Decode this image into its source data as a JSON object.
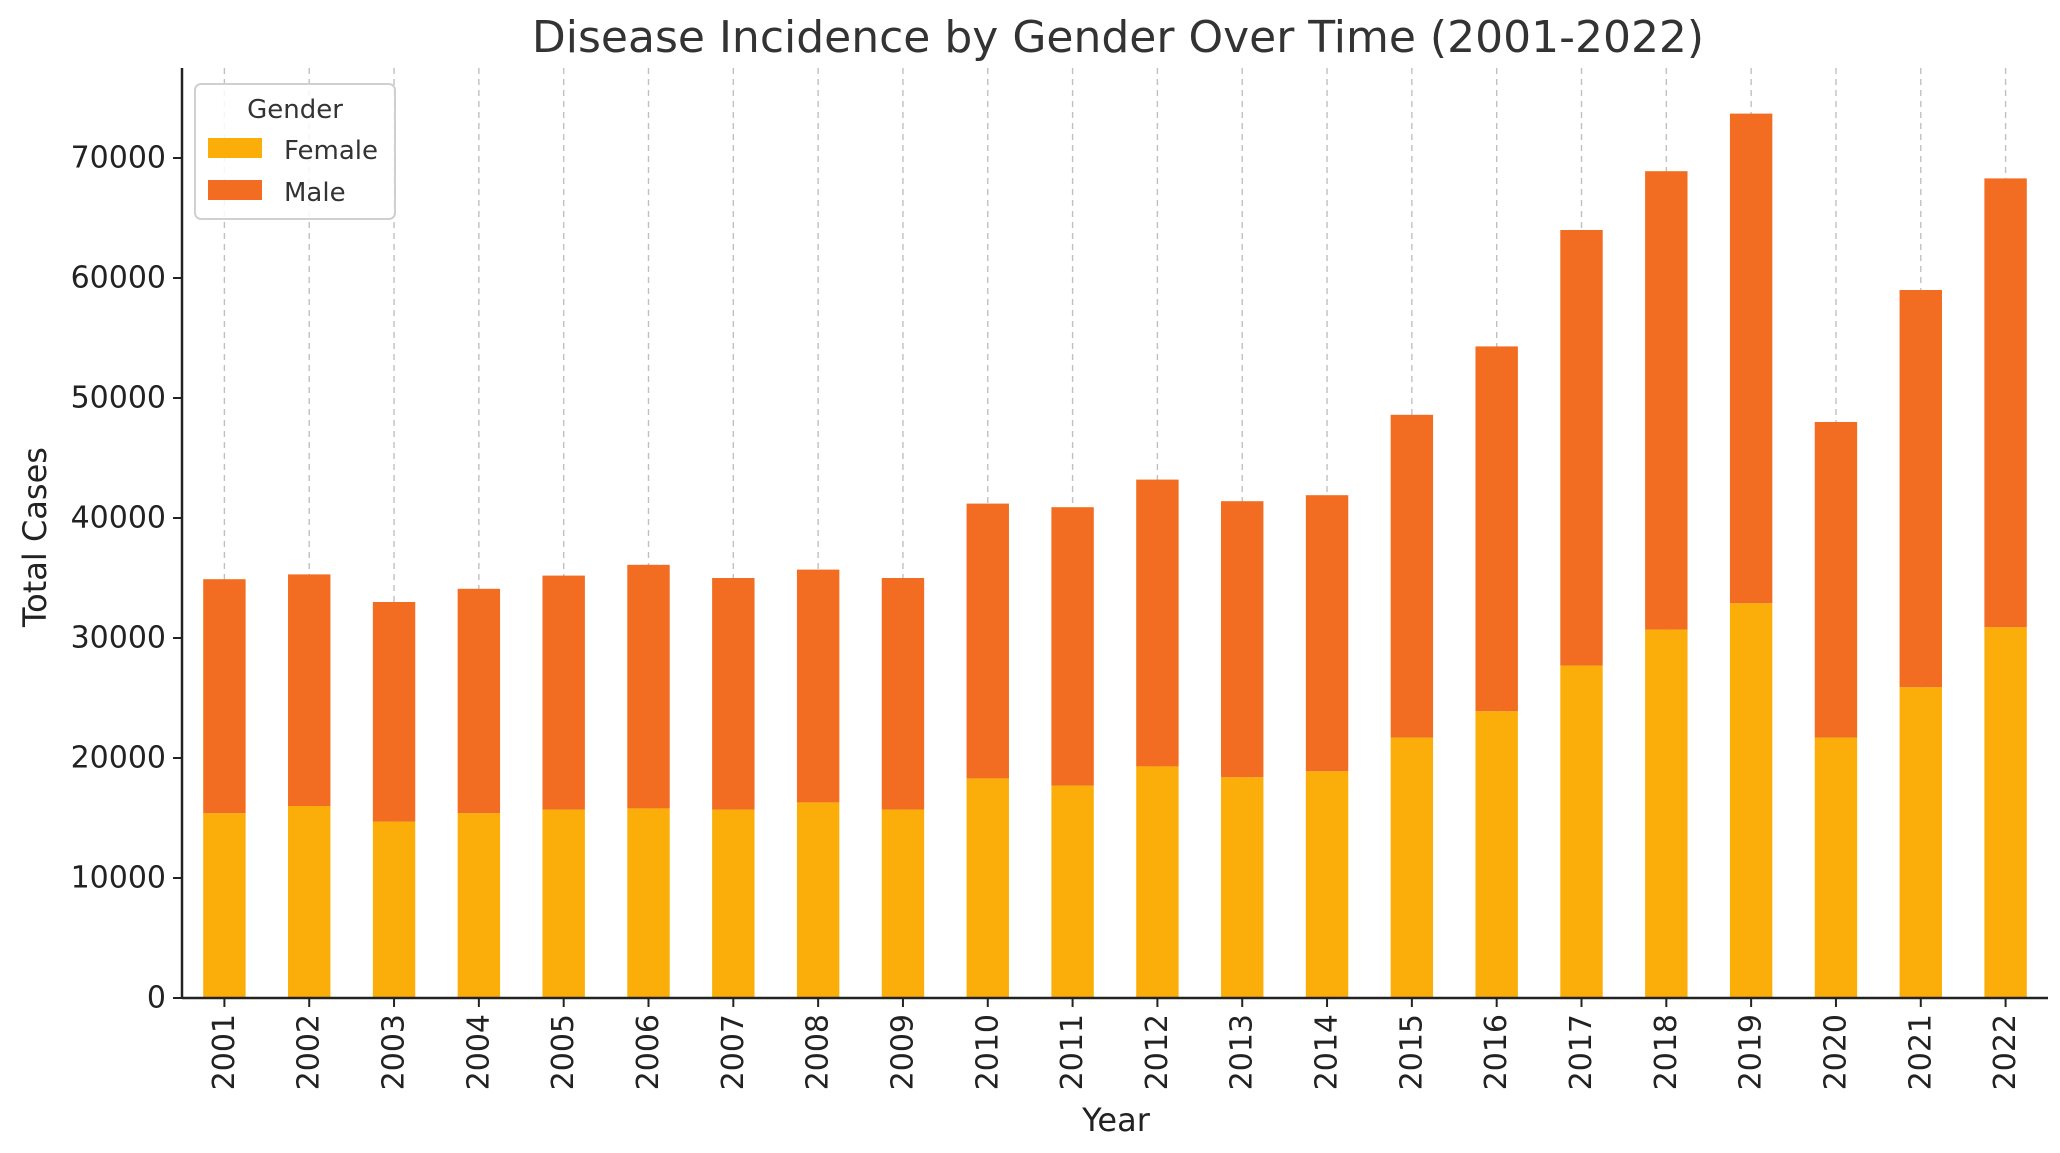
{
  "chart_data": {
    "type": "bar",
    "stacked": true,
    "title": "Disease Incidence by Gender Over Time (2001-2022)",
    "xlabel": "Year",
    "ylabel": "Total Cases",
    "ylim": [
      0,
      77500
    ],
    "yticks": [
      0,
      10000,
      20000,
      30000,
      40000,
      50000,
      60000,
      70000
    ],
    "grid": "vertical dashed",
    "legend": {
      "title": "Gender",
      "placement": "top-left"
    },
    "categories": [
      "2001",
      "2002",
      "2003",
      "2004",
      "2005",
      "2006",
      "2007",
      "2008",
      "2009",
      "2010",
      "2011",
      "2012",
      "2013",
      "2014",
      "2015",
      "2016",
      "2017",
      "2018",
      "2019",
      "2020",
      "2021",
      "2022"
    ],
    "series": [
      {
        "name": "Female",
        "color": "#FBAE09",
        "values": [
          15400,
          16000,
          14700,
          15400,
          15700,
          15800,
          15700,
          16300,
          15700,
          18300,
          17700,
          19300,
          18400,
          18900,
          21700,
          23900,
          27700,
          30700,
          32900,
          21700,
          25900,
          30900
        ]
      },
      {
        "name": "Male",
        "color": "#F26C22",
        "values": [
          19500,
          19300,
          18300,
          18700,
          19500,
          20300,
          19300,
          19400,
          19300,
          22900,
          23200,
          23900,
          23000,
          23000,
          26900,
          30400,
          36300,
          38200,
          40800,
          26300,
          33100,
          37400
        ]
      }
    ]
  }
}
